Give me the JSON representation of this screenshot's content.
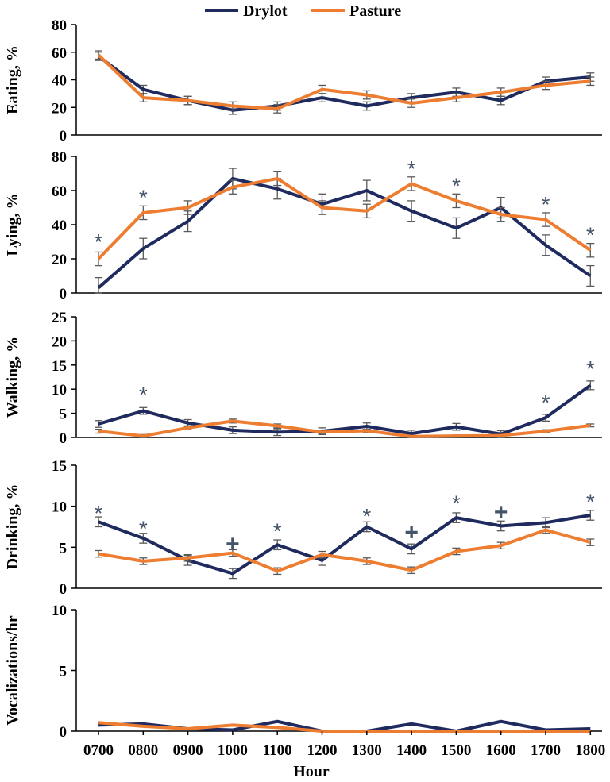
{
  "chart_data": {
    "type": "line",
    "xlabel": "Hour",
    "categories": [
      "0700",
      "0800",
      "0900",
      "1000",
      "1100",
      "1200",
      "1300",
      "1400",
      "1500",
      "1600",
      "1700",
      "1800"
    ],
    "legend": {
      "position": "top-center",
      "entries": [
        {
          "name": "Drylot",
          "color": "#1f2a5e"
        },
        {
          "name": "Pasture",
          "color": "#ed7d31"
        }
      ]
    },
    "colors": {
      "drylot": "#1f2a5e",
      "pasture": "#ed7d31",
      "error_bar": "#595959",
      "annotation": "#44546a",
      "axis": "#000000"
    },
    "panels": [
      {
        "ylabel": "Eating, %",
        "ylim": [
          0,
          80
        ],
        "yticks": [
          "0",
          "20",
          "40",
          "60",
          "80"
        ],
        "series": [
          {
            "name": "Drylot",
            "values": [
              57,
              33,
              25,
              18,
              21,
              27,
              21,
              27,
              31,
              25,
              39,
              42
            ],
            "errors": [
              3,
              3,
              3,
              3,
              3,
              3,
              3,
              3,
              3,
              3,
              3,
              3
            ]
          },
          {
            "name": "Pasture",
            "values": [
              58,
              27,
              25,
              21,
              19,
              33,
              29,
              23,
              27,
              31,
              36,
              39
            ],
            "errors": [
              3,
              3,
              3,
              3,
              3,
              3,
              3,
              3,
              3,
              3,
              3,
              3
            ]
          }
        ],
        "annotations": []
      },
      {
        "ylabel": "Lying, %",
        "ylim": [
          0,
          80
        ],
        "yticks": [
          "0",
          "20",
          "40",
          "60",
          "80"
        ],
        "series": [
          {
            "name": "Drylot",
            "values": [
              3,
              26,
              42,
              67,
              61,
              52,
              60,
              48,
              38,
              50,
              28,
              10
            ],
            "errors": [
              6,
              6,
              6,
              6,
              6,
              6,
              6,
              6,
              6,
              6,
              6,
              6
            ]
          },
          {
            "name": "Pasture",
            "values": [
              20,
              47,
              50,
              62,
              67,
              50,
              48,
              64,
              54,
              46,
              43,
              25
            ],
            "errors": [
              4,
              4,
              4,
              4,
              4,
              4,
              4,
              4,
              4,
              4,
              4,
              4
            ]
          }
        ],
        "annotations": [
          {
            "category": "0700",
            "symbol": "*",
            "y": 32
          },
          {
            "category": "0800",
            "symbol": "*",
            "y": 58
          },
          {
            "category": "1400",
            "symbol": "*",
            "y": 75
          },
          {
            "category": "1500",
            "symbol": "*",
            "y": 65
          },
          {
            "category": "1700",
            "symbol": "*",
            "y": 54
          },
          {
            "category": "1800",
            "symbol": "*",
            "y": 36
          }
        ]
      },
      {
        "ylabel": "Walking, %",
        "ylim": [
          0,
          25
        ],
        "yticks": [
          "0",
          "5",
          "10",
          "15",
          "20",
          "25"
        ],
        "series": [
          {
            "name": "Drylot",
            "values": [
              2.8,
              5.5,
              3.0,
              1.5,
              1.1,
              1.3,
              2.3,
              0.8,
              2.2,
              0.7,
              4.1,
              10.8
            ],
            "errors": [
              0.7,
              0.7,
              0.7,
              0.7,
              0.7,
              0.7,
              0.7,
              0.7,
              0.7,
              0.7,
              0.7,
              0.9
            ]
          },
          {
            "name": "Pasture",
            "values": [
              1.3,
              0.3,
              2.0,
              3.4,
              2.4,
              1.1,
              1.4,
              0.2,
              0.3,
              0.4,
              1.3,
              2.5
            ],
            "errors": [
              0.4,
              0.3,
              0.4,
              0.4,
              0.4,
              0.3,
              0.3,
              0.2,
              0.2,
              0.2,
              0.3,
              0.3
            ]
          }
        ],
        "annotations": [
          {
            "category": "0800",
            "symbol": "*",
            "y": 9.5
          },
          {
            "category": "1700",
            "symbol": "*",
            "y": 8.0
          },
          {
            "category": "1800",
            "symbol": "*",
            "y": 15.0
          }
        ]
      },
      {
        "ylabel": "Drinking, %",
        "ylim": [
          0,
          15
        ],
        "yticks": [
          "0",
          "5",
          "10",
          "15"
        ],
        "series": [
          {
            "name": "Drylot",
            "values": [
              8.1,
              6.1,
              3.4,
              1.8,
              5.3,
              3.4,
              7.5,
              4.8,
              8.6,
              7.6,
              8.0,
              8.9
            ],
            "errors": [
              0.6,
              0.6,
              0.6,
              0.6,
              0.6,
              0.6,
              0.6,
              0.6,
              0.6,
              0.6,
              0.6,
              0.6
            ]
          },
          {
            "name": "Pasture",
            "values": [
              4.2,
              3.3,
              3.7,
              4.3,
              2.1,
              4.1,
              3.3,
              2.2,
              4.5,
              5.2,
              7.1,
              5.6
            ],
            "errors": [
              0.4,
              0.4,
              0.4,
              0.4,
              0.4,
              0.4,
              0.4,
              0.4,
              0.4,
              0.4,
              0.4,
              0.4
            ]
          }
        ],
        "annotations": [
          {
            "category": "0700",
            "symbol": "*",
            "y": 9.6
          },
          {
            "category": "0800",
            "symbol": "*",
            "y": 7.7
          },
          {
            "category": "1000",
            "symbol": "+",
            "y": 5.4
          },
          {
            "category": "1100",
            "symbol": "*",
            "y": 7.4
          },
          {
            "category": "1300",
            "symbol": "*",
            "y": 9.2
          },
          {
            "category": "1400",
            "symbol": "+",
            "y": 6.8
          },
          {
            "category": "1500",
            "symbol": "*",
            "y": 10.8
          },
          {
            "category": "1600",
            "symbol": "+",
            "y": 9.3
          },
          {
            "category": "1800",
            "symbol": "*",
            "y": 11.0
          }
        ]
      },
      {
        "ylabel": "Vocalizations/hr",
        "ylim": [
          0,
          10
        ],
        "yticks": [
          "0",
          "5",
          "10"
        ],
        "series": [
          {
            "name": "Drylot",
            "values": [
              0.5,
              0.6,
              0.2,
              0.1,
              0.8,
              0.0,
              0.0,
              0.6,
              0.0,
              0.8,
              0.1,
              0.2
            ],
            "errors": []
          },
          {
            "name": "Pasture",
            "values": [
              0.7,
              0.4,
              0.2,
              0.5,
              0.3,
              0.0,
              0.0,
              0.0,
              0.0,
              0.0,
              0.0,
              0.0
            ],
            "errors": []
          }
        ],
        "annotations": []
      }
    ]
  }
}
